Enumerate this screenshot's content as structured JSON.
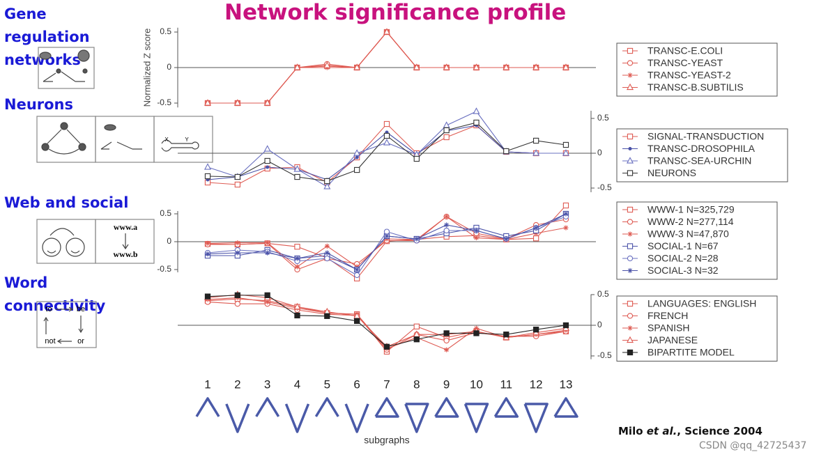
{
  "title": "Network significance profile",
  "sections": [
    "Gene regulation networks",
    "Neurons",
    "Web and social",
    "Word connectivity"
  ],
  "icon_labels": {
    "neuron_x": "X",
    "neuron_y": "Y",
    "www_a": "www.a",
    "www_b": "www.b",
    "to": "to",
    "be": "be",
    "not": "not",
    "or": "or"
  },
  "citation": {
    "author": "Milo ",
    "etal": "et al.",
    "rest": ", Science 2004"
  },
  "watermark": "CSDN @qq_42725437",
  "chart_data": [
    {
      "type": "line",
      "ylabel": "Normalized Z score",
      "yaxis_side": "left",
      "ylim": [
        -0.6,
        0.6
      ],
      "yticks": [
        0.5,
        0,
        -0.5
      ],
      "series": [
        {
          "name": "TRANSC-E.COLI",
          "color": "#de5a52",
          "marker": "square",
          "values": [
            -0.5,
            -0.5,
            -0.5,
            0,
            0.02,
            0,
            0.5,
            0,
            0,
            0,
            0,
            0,
            0
          ]
        },
        {
          "name": "TRANSC-YEAST",
          "color": "#de5a52",
          "marker": "circle",
          "values": [
            -0.5,
            -0.5,
            -0.5,
            0,
            0.05,
            0,
            0.5,
            0,
            0,
            0,
            0,
            0,
            0
          ]
        },
        {
          "name": "TRANSC-YEAST-2",
          "color": "#de5a52",
          "marker": "star",
          "values": [
            -0.5,
            -0.5,
            -0.5,
            0,
            0,
            0,
            0.5,
            0,
            0,
            0,
            0,
            0,
            0
          ]
        },
        {
          "name": "TRANSC-B.SUBTILIS",
          "color": "#de5a52",
          "marker": "triangle",
          "values": [
            -0.5,
            -0.5,
            -0.5,
            0,
            0.03,
            0,
            0.5,
            0,
            0,
            0,
            0,
            0,
            0
          ]
        }
      ]
    },
    {
      "type": "line",
      "yaxis_side": "right",
      "ylim": [
        -0.6,
        0.65
      ],
      "yticks": [
        0.5,
        0,
        -0.5
      ],
      "series": [
        {
          "name": "SIGNAL-TRANSDUCTION",
          "color": "#de5a52",
          "marker": "square",
          "values": [
            -0.42,
            -0.45,
            -0.22,
            -0.2,
            -0.42,
            -0.06,
            0.42,
            0,
            0.23,
            0.4,
            0.02,
            0,
            0
          ]
        },
        {
          "name": "TRANSC-DROSOPHILA",
          "color": "#4a52a8",
          "marker": "dot",
          "values": [
            -0.38,
            -0.34,
            -0.2,
            -0.23,
            -0.38,
            -0.06,
            0.3,
            -0.02,
            0.32,
            0.4,
            0.02,
            0,
            0
          ]
        },
        {
          "name": "TRANSC-SEA-URCHIN",
          "color": "#6a70c0",
          "marker": "triangle",
          "values": [
            -0.2,
            -0.34,
            0.06,
            -0.23,
            -0.48,
            0,
            0.15,
            -0.02,
            0.4,
            0.6,
            0.02,
            0,
            0
          ]
        },
        {
          "name": "NEURONS",
          "color": "#333333",
          "marker": "square",
          "values": [
            -0.33,
            -0.34,
            -0.11,
            -0.34,
            -0.4,
            -0.24,
            0.25,
            -0.08,
            0.33,
            0.44,
            0.03,
            0.18,
            0.12
          ]
        }
      ]
    },
    {
      "type": "line",
      "yaxis_side": "left",
      "ylim": [
        -0.6,
        0.6
      ],
      "yticks": [
        0.5,
        0,
        -0.5
      ],
      "series": [
        {
          "name": "WWW-1 N=325,729",
          "color": "#de5a52",
          "marker": "square",
          "values": [
            -0.04,
            -0.05,
            -0.03,
            -0.09,
            -0.29,
            -0.66,
            0.01,
            0.04,
            0.09,
            0.11,
            0.04,
            0.06,
            0.65
          ]
        },
        {
          "name": "WWW-2 N=277,114",
          "color": "#de5a52",
          "marker": "circle",
          "values": [
            -0.05,
            -0.05,
            -0.03,
            -0.5,
            -0.3,
            -0.4,
            0.02,
            0.02,
            0.45,
            0.15,
            0.05,
            0.3,
            0.4
          ]
        },
        {
          "name": "WWW-3 N=47,870",
          "color": "#de5a52",
          "marker": "star",
          "values": [
            -0.03,
            -0.02,
            -0.02,
            -0.45,
            -0.08,
            -0.45,
            0.05,
            0.04,
            0.45,
            0.07,
            0.04,
            0.15,
            0.25
          ]
        },
        {
          "name": "SOCIAL-1 N=67",
          "color": "#4a52a8",
          "marker": "square",
          "values": [
            -0.25,
            -0.25,
            -0.15,
            -0.3,
            -0.25,
            -0.5,
            0.1,
            0.05,
            0.15,
            0.25,
            0.1,
            0.2,
            0.5
          ]
        },
        {
          "name": "SOCIAL-2 N=28",
          "color": "#6a70c0",
          "marker": "circle",
          "values": [
            -0.2,
            -0.15,
            -0.18,
            -0.35,
            -0.3,
            -0.6,
            0.18,
            0.02,
            0.2,
            0.2,
            0.05,
            0.25,
            0.45
          ]
        },
        {
          "name": "SOCIAL-3 N=32",
          "color": "#4a52a8",
          "marker": "star",
          "values": [
            -0.22,
            -0.2,
            -0.2,
            -0.3,
            -0.2,
            -0.5,
            0.1,
            0.05,
            0.3,
            0.2,
            0.05,
            0.25,
            0.5
          ]
        }
      ]
    },
    {
      "type": "line",
      "yaxis_side": "right",
      "xlabel": "subgraphs",
      "categories": [
        "1",
        "2",
        "3",
        "4",
        "5",
        "6",
        "7",
        "8",
        "9",
        "10",
        "11",
        "12",
        "13"
      ],
      "ylim": [
        -0.6,
        0.55
      ],
      "yticks": [
        0.5,
        0,
        -0.5
      ],
      "series": [
        {
          "name": "LANGUAGES: ENGLISH",
          "color": "#de5a52",
          "marker": "square",
          "values": [
            0.4,
            0.43,
            0.4,
            0.3,
            0.2,
            0.18,
            -0.43,
            -0.02,
            -0.2,
            -0.1,
            -0.2,
            -0.15,
            -0.1
          ]
        },
        {
          "name": "FRENCH",
          "color": "#de5a52",
          "marker": "circle",
          "values": [
            0.38,
            0.35,
            0.35,
            0.25,
            0.18,
            0.16,
            -0.4,
            -0.15,
            -0.25,
            -0.12,
            -0.18,
            -0.18,
            -0.1
          ]
        },
        {
          "name": "SPANISH",
          "color": "#de5a52",
          "marker": "star",
          "values": [
            0.42,
            0.45,
            0.38,
            0.28,
            0.2,
            0.18,
            -0.38,
            -0.2,
            -0.4,
            -0.05,
            -0.2,
            -0.15,
            -0.08
          ]
        },
        {
          "name": "JAPANESE",
          "color": "#de5a52",
          "marker": "triangle",
          "values": [
            0.45,
            0.5,
            0.45,
            0.3,
            0.22,
            0.15,
            -0.35,
            -0.15,
            -0.15,
            -0.1,
            -0.2,
            -0.12,
            -0.05
          ]
        },
        {
          "name": "BIPARTITE MODEL",
          "color": "#222222",
          "marker": "filled-square",
          "values": [
            0.47,
            0.49,
            0.49,
            0.16,
            0.15,
            0.07,
            -0.35,
            -0.23,
            -0.13,
            -0.13,
            -0.15,
            -0.07,
            0
          ]
        }
      ]
    }
  ]
}
